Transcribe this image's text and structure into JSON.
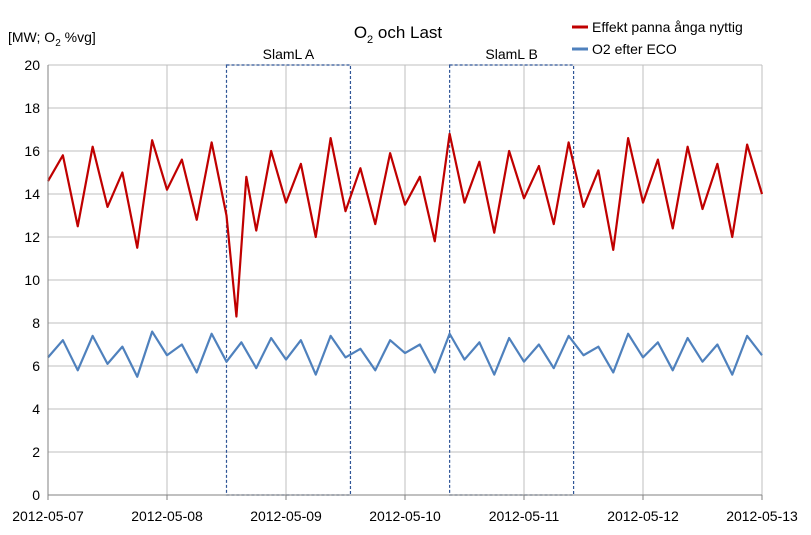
{
  "chart_data": {
    "type": "line",
    "title": "O",
    "title_sub": "2",
    "title_rest": " och Last",
    "ylabel_parts": [
      "[MW; O",
      "2",
      " %vg]"
    ],
    "ylim": [
      0,
      20
    ],
    "y_ticks": [
      0,
      2,
      4,
      6,
      8,
      10,
      12,
      14,
      16,
      18,
      20
    ],
    "x_ticks": [
      "2012-05-07",
      "2012-05-08",
      "2012-05-09",
      "2012-05-10",
      "2012-05-11",
      "2012-05-12",
      "2012-05-13"
    ],
    "xlim": [
      "2012-05-07",
      "2012-05-13"
    ],
    "grid": {
      "horizontal": true,
      "vertical": true
    },
    "legend_position": "top-right",
    "series": [
      {
        "name": "Effekt panna ånga nyttig",
        "color": "#C00000",
        "points": [
          [
            "2012-05-07 00:00",
            14.6
          ],
          [
            "2012-05-07 03:00",
            15.8
          ],
          [
            "2012-05-07 06:00",
            12.5
          ],
          [
            "2012-05-07 09:00",
            16.2
          ],
          [
            "2012-05-07 12:00",
            13.4
          ],
          [
            "2012-05-07 15:00",
            15.0
          ],
          [
            "2012-05-07 18:00",
            11.5
          ],
          [
            "2012-05-07 21:00",
            16.5
          ],
          [
            "2012-05-08 00:00",
            14.2
          ],
          [
            "2012-05-08 03:00",
            15.6
          ],
          [
            "2012-05-08 06:00",
            12.8
          ],
          [
            "2012-05-08 09:00",
            16.4
          ],
          [
            "2012-05-08 12:00",
            13.0
          ],
          [
            "2012-05-08 14:00",
            8.3
          ],
          [
            "2012-05-08 16:00",
            14.8
          ],
          [
            "2012-05-08 18:00",
            12.3
          ],
          [
            "2012-05-08 21:00",
            16.0
          ],
          [
            "2012-05-09 00:00",
            13.6
          ],
          [
            "2012-05-09 03:00",
            15.4
          ],
          [
            "2012-05-09 06:00",
            12.0
          ],
          [
            "2012-05-09 09:00",
            16.6
          ],
          [
            "2012-05-09 12:00",
            13.2
          ],
          [
            "2012-05-09 15:00",
            15.2
          ],
          [
            "2012-05-09 18:00",
            12.6
          ],
          [
            "2012-05-09 21:00",
            15.9
          ],
          [
            "2012-05-10 00:00",
            13.5
          ],
          [
            "2012-05-10 03:00",
            14.8
          ],
          [
            "2012-05-10 06:00",
            11.8
          ],
          [
            "2012-05-10 09:00",
            16.8
          ],
          [
            "2012-05-10 12:00",
            13.6
          ],
          [
            "2012-05-10 15:00",
            15.5
          ],
          [
            "2012-05-10 18:00",
            12.2
          ],
          [
            "2012-05-10 21:00",
            16.0
          ],
          [
            "2012-05-11 00:00",
            13.8
          ],
          [
            "2012-05-11 03:00",
            15.3
          ],
          [
            "2012-05-11 06:00",
            12.6
          ],
          [
            "2012-05-11 09:00",
            16.4
          ],
          [
            "2012-05-11 12:00",
            13.4
          ],
          [
            "2012-05-11 15:00",
            15.1
          ],
          [
            "2012-05-11 18:00",
            11.4
          ],
          [
            "2012-05-11 21:00",
            16.6
          ],
          [
            "2012-05-12 00:00",
            13.6
          ],
          [
            "2012-05-12 03:00",
            15.6
          ],
          [
            "2012-05-12 06:00",
            12.4
          ],
          [
            "2012-05-12 09:00",
            16.2
          ],
          [
            "2012-05-12 12:00",
            13.3
          ],
          [
            "2012-05-12 15:00",
            15.4
          ],
          [
            "2012-05-12 18:00",
            12.0
          ],
          [
            "2012-05-12 21:00",
            16.3
          ],
          [
            "2012-05-13 00:00",
            14.0
          ]
        ]
      },
      {
        "name": "O2 efter ECO",
        "color": "#4F81BD",
        "points": [
          [
            "2012-05-07 00:00",
            6.4
          ],
          [
            "2012-05-07 03:00",
            7.2
          ],
          [
            "2012-05-07 06:00",
            5.8
          ],
          [
            "2012-05-07 09:00",
            7.4
          ],
          [
            "2012-05-07 12:00",
            6.1
          ],
          [
            "2012-05-07 15:00",
            6.9
          ],
          [
            "2012-05-07 18:00",
            5.5
          ],
          [
            "2012-05-07 21:00",
            7.6
          ],
          [
            "2012-05-08 00:00",
            6.5
          ],
          [
            "2012-05-08 03:00",
            7.0
          ],
          [
            "2012-05-08 06:00",
            5.7
          ],
          [
            "2012-05-08 09:00",
            7.5
          ],
          [
            "2012-05-08 12:00",
            6.2
          ],
          [
            "2012-05-08 15:00",
            7.1
          ],
          [
            "2012-05-08 18:00",
            5.9
          ],
          [
            "2012-05-08 21:00",
            7.3
          ],
          [
            "2012-05-09 00:00",
            6.3
          ],
          [
            "2012-05-09 03:00",
            7.2
          ],
          [
            "2012-05-09 06:00",
            5.6
          ],
          [
            "2012-05-09 09:00",
            7.4
          ],
          [
            "2012-05-09 12:00",
            6.4
          ],
          [
            "2012-05-09 15:00",
            6.8
          ],
          [
            "2012-05-09 18:00",
            5.8
          ],
          [
            "2012-05-09 21:00",
            7.2
          ],
          [
            "2012-05-10 00:00",
            6.6
          ],
          [
            "2012-05-10 03:00",
            7.0
          ],
          [
            "2012-05-10 06:00",
            5.7
          ],
          [
            "2012-05-10 09:00",
            7.5
          ],
          [
            "2012-05-10 12:00",
            6.3
          ],
          [
            "2012-05-10 15:00",
            7.1
          ],
          [
            "2012-05-10 18:00",
            5.6
          ],
          [
            "2012-05-10 21:00",
            7.3
          ],
          [
            "2012-05-11 00:00",
            6.2
          ],
          [
            "2012-05-11 03:00",
            7.0
          ],
          [
            "2012-05-11 06:00",
            5.9
          ],
          [
            "2012-05-11 09:00",
            7.4
          ],
          [
            "2012-05-11 12:00",
            6.5
          ],
          [
            "2012-05-11 15:00",
            6.9
          ],
          [
            "2012-05-11 18:00",
            5.7
          ],
          [
            "2012-05-11 21:00",
            7.5
          ],
          [
            "2012-05-12 00:00",
            6.4
          ],
          [
            "2012-05-12 03:00",
            7.1
          ],
          [
            "2012-05-12 06:00",
            5.8
          ],
          [
            "2012-05-12 09:00",
            7.3
          ],
          [
            "2012-05-12 12:00",
            6.2
          ],
          [
            "2012-05-12 15:00",
            7.0
          ],
          [
            "2012-05-12 18:00",
            5.6
          ],
          [
            "2012-05-12 21:00",
            7.4
          ],
          [
            "2012-05-13 00:00",
            6.5
          ]
        ]
      }
    ],
    "annotations": [
      {
        "label": "SlamL A",
        "x_start": "2012-05-08 12:00",
        "x_end": "2012-05-09 13:00",
        "y_top": 20,
        "y_bottom": 0
      },
      {
        "label": "SlamL B",
        "x_start": "2012-05-10 09:00",
        "x_end": "2012-05-11 10:00",
        "y_top": 20,
        "y_bottom": 0
      }
    ]
  }
}
